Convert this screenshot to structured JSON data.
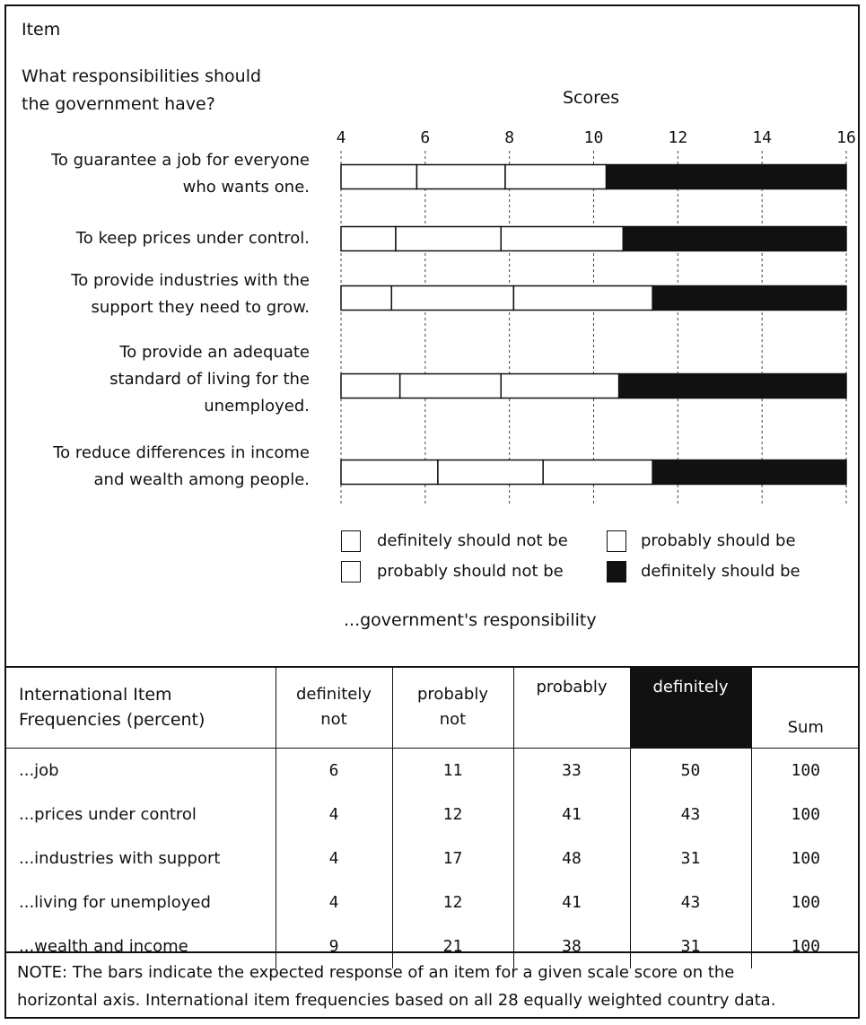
{
  "header": {
    "item_heading": "Item",
    "question_line1": "What responsibilities should",
    "question_line2": "the government have?",
    "scores_title": "Scores"
  },
  "chart_data": {
    "type": "bar",
    "subtype": "stacked-horizontal-thresholds",
    "xlabel": "Scores",
    "xlim": [
      4,
      16
    ],
    "xticks": [
      4,
      6,
      8,
      10,
      12,
      14,
      16
    ],
    "categories": [
      [
        "To guarantee a job for everyone",
        "who wants one."
      ],
      [
        "To keep prices under control."
      ],
      [
        "To provide industries with the",
        "support they need to grow."
      ],
      [
        "To provide an adequate",
        "standard of living for the",
        "unemployed."
      ],
      [
        "To reduce differences in income",
        "and wealth among people."
      ]
    ],
    "series": [
      {
        "name": "definitely should not be",
        "color": "#ffffff",
        "starts": [
          4,
          4,
          4,
          4,
          4
        ],
        "ends": [
          5.8,
          5.3,
          5.2,
          5.4,
          6.3
        ]
      },
      {
        "name": "probably should not be",
        "color": "#ffffff",
        "starts": [
          5.8,
          5.3,
          5.2,
          5.4,
          6.3
        ],
        "ends": [
          7.9,
          7.8,
          8.1,
          7.8,
          8.8
        ]
      },
      {
        "name": "probably should be",
        "color": "#ffffff",
        "starts": [
          7.9,
          7.8,
          8.1,
          7.8,
          8.8
        ],
        "ends": [
          10.3,
          10.7,
          11.4,
          10.6,
          11.4
        ]
      },
      {
        "name": "definitely should be",
        "color": "#111111",
        "starts": [
          10.3,
          10.7,
          11.4,
          10.6,
          11.4
        ],
        "ends": [
          16,
          16,
          16,
          16,
          16
        ]
      }
    ],
    "legend_footer": "...government's responsibility",
    "grid": true
  },
  "table": {
    "header_label_line1": "International Item",
    "header_label_line2": "Frequencies (percent)",
    "columns": [
      {
        "line1": "definitely",
        "line2": "not"
      },
      {
        "line1": "probably",
        "line2": "not"
      },
      {
        "line1": "probably",
        "line2": ""
      },
      {
        "line1": "definitely",
        "line2": ""
      },
      {
        "line1": "",
        "line2": "Sum"
      }
    ],
    "rows": [
      {
        "label": "...job",
        "values": [
          "6",
          "11",
          "33",
          "50",
          "100"
        ]
      },
      {
        "label": "...prices under control",
        "values": [
          "4",
          "12",
          "41",
          "43",
          "100"
        ]
      },
      {
        "label": "...industries with support",
        "values": [
          "4",
          "17",
          "48",
          "31",
          "100"
        ]
      },
      {
        "label": "...living for unemployed",
        "values": [
          "4",
          "12",
          "41",
          "43",
          "100"
        ]
      },
      {
        "label": "...wealth and income",
        "values": [
          "9",
          "21",
          "38",
          "31",
          "100"
        ]
      }
    ]
  },
  "note": {
    "line1": "NOTE: The bars indicate the expected response of an item for a given scale score on the",
    "line2": "horizontal axis. International item frequencies based on all 28 equally weighted country data."
  }
}
